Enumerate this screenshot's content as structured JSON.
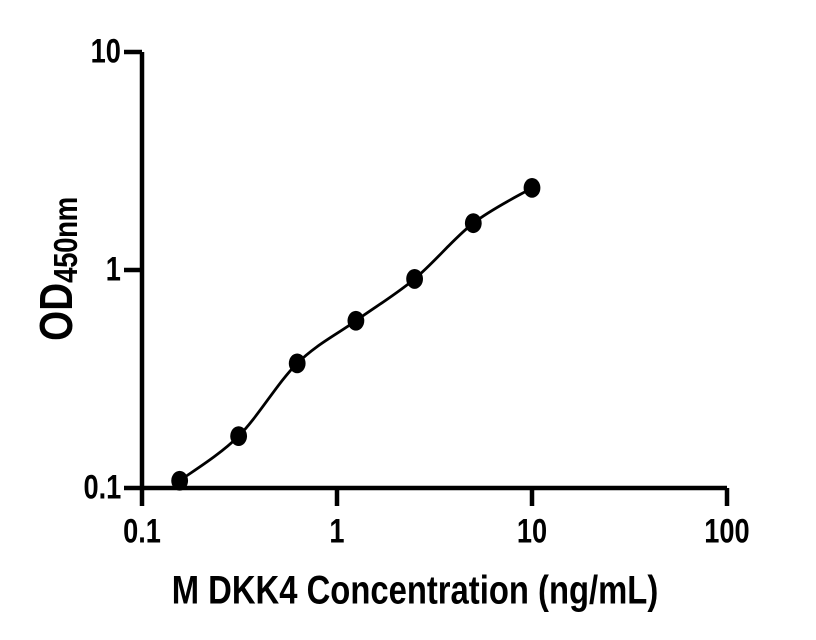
{
  "figure": {
    "background": "#ffffff",
    "ink_color": "#000000"
  },
  "chart_data": {
    "type": "line",
    "title": "",
    "xlabel": "M DKK4 Concentration (ng/mL)",
    "ylabel": "OD450nm",
    "ylabel_parts": {
      "main": "OD",
      "sub": "450nm"
    },
    "x_scale": "log",
    "y_scale": "log",
    "xlim": [
      0.1,
      100
    ],
    "ylim": [
      0.1,
      10
    ],
    "x_ticks": {
      "values": [
        0.1,
        1,
        10,
        100
      ],
      "labels": [
        "0.1",
        "1",
        "10",
        "100"
      ]
    },
    "y_ticks": {
      "values": [
        0.1,
        1,
        10
      ],
      "labels": [
        "0.1",
        "1",
        "10"
      ]
    },
    "grid": false,
    "legend": null,
    "marker": "filled-ellipse",
    "line_style": "smooth",
    "x": [
      0.156,
      0.313,
      0.625,
      1.25,
      2.5,
      5,
      10
    ],
    "y": [
      0.108,
      0.173,
      0.373,
      0.585,
      0.91,
      1.64,
      2.38
    ]
  }
}
